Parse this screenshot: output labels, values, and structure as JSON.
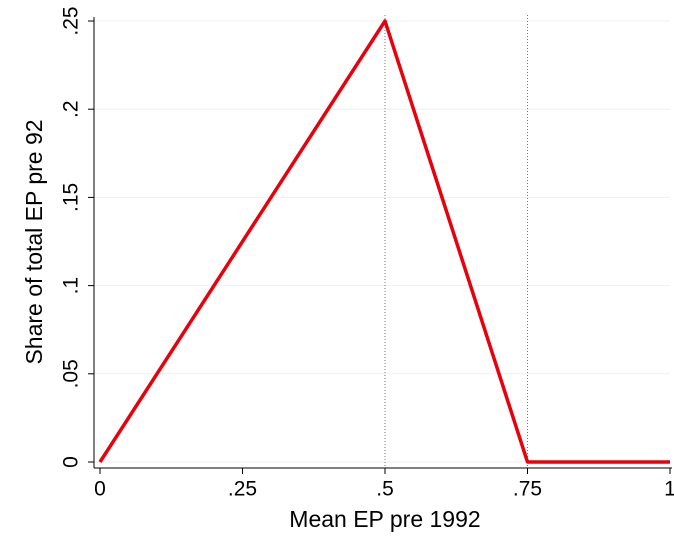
{
  "chart_data": {
    "type": "line",
    "x": [
      0,
      0.5,
      0.75,
      1
    ],
    "series": [
      {
        "color": "#e8000b",
        "values": [
          0,
          0.25,
          0,
          0
        ]
      }
    ],
    "xlabel": "Mean EP pre 1992",
    "ylabel": "Share of total EP pre 92",
    "xlim": [
      0,
      1
    ],
    "ylim": [
      0,
      0.25
    ],
    "xticks": [
      0,
      {
        "value": 0.25,
        "label": ".25"
      },
      {
        "value": 0.5,
        "label": ".5"
      },
      {
        "value": 0.75,
        "label": ".75"
      },
      1
    ],
    "yticks": [
      0,
      {
        "value": 0.05,
        "label": ".05"
      },
      {
        "value": 0.1,
        "label": ".1"
      },
      {
        "value": 0.15,
        "label": ".15"
      },
      {
        "value": 0.2,
        "label": ".2"
      },
      {
        "value": 0.25,
        "label": ".25"
      }
    ],
    "xlines": [
      0.5,
      0.75
    ],
    "grid": true
  }
}
